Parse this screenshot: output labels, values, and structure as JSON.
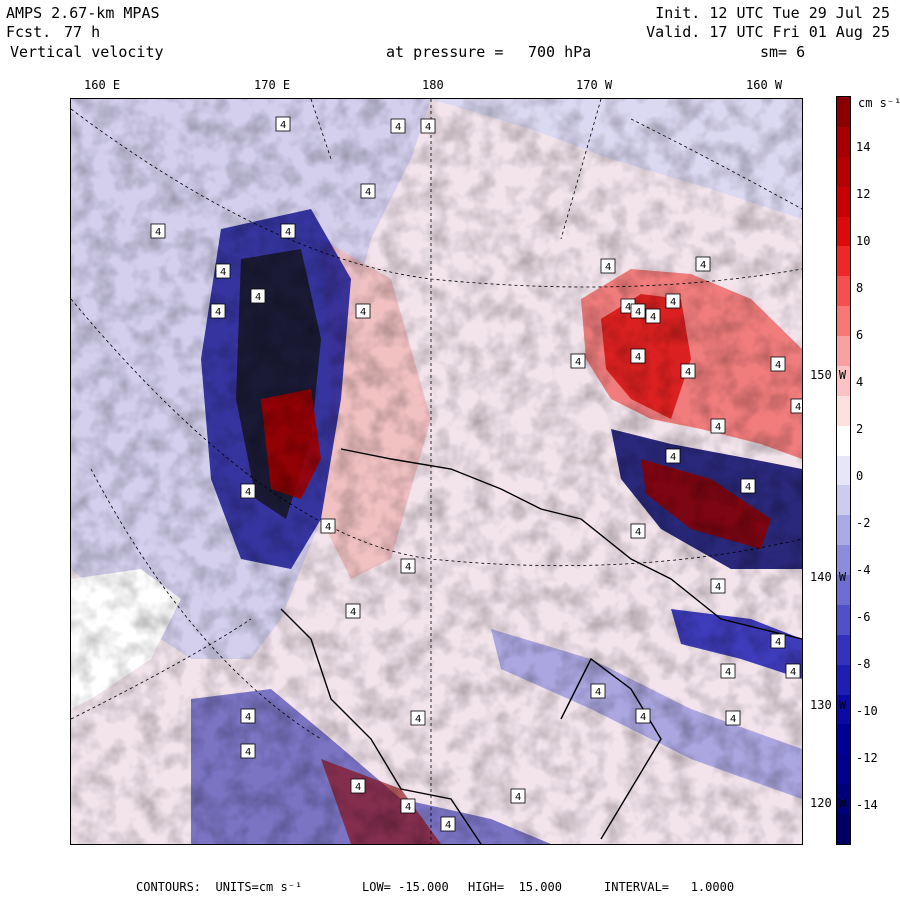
{
  "header": {
    "model": "AMPS 2.67-km MPAS",
    "forecast_label": "Fcst.",
    "forecast_hours": "77 h",
    "field": "Vertical velocity",
    "init": "Init. 12 UTC Tue 29 Jul 25",
    "valid": "Valid. 17 UTC Fri 01 Aug 25",
    "pressure_label": "at pressure =",
    "pressure_value": "700 hPa",
    "smoothing": "sm= 6"
  },
  "longitude_labels": [
    "160 E",
    "170 E",
    "180",
    "170 W",
    "160 W"
  ],
  "latitude_labels": [
    "150 W",
    "140 W",
    "130 W",
    "120 W"
  ],
  "colorbar": {
    "units": "cm s⁻¹",
    "tick_labels": [
      "14",
      "12",
      "10",
      "8",
      "6",
      "4",
      "2",
      "0",
      "-2",
      "-4",
      "-6",
      "-8",
      "-10",
      "-12",
      "-14"
    ],
    "colors": [
      "#8b0000",
      "#a50000",
      "#b40000",
      "#c80000",
      "#dc0a0a",
      "#ee2828",
      "#f55050",
      "#f87878",
      "#f9a0a0",
      "#fbc3c3",
      "#fde0e0",
      "#ffffff",
      "#e6e6f8",
      "#ccccf0",
      "#aaaae6",
      "#8c8cdc",
      "#6e6ed2",
      "#5050c8",
      "#3232be",
      "#1e1eb4",
      "#0a0aa5",
      "#000096",
      "#00008c",
      "#000078",
      "#000064"
    ]
  },
  "map_marker_label": "4",
  "footer": {
    "contours": "CONTOURS:  UNITS=cm s⁻¹",
    "low": "LOW= -15.000",
    "high": "HIGH=  15.000",
    "interval": "INTERVAL=   1.0000"
  }
}
